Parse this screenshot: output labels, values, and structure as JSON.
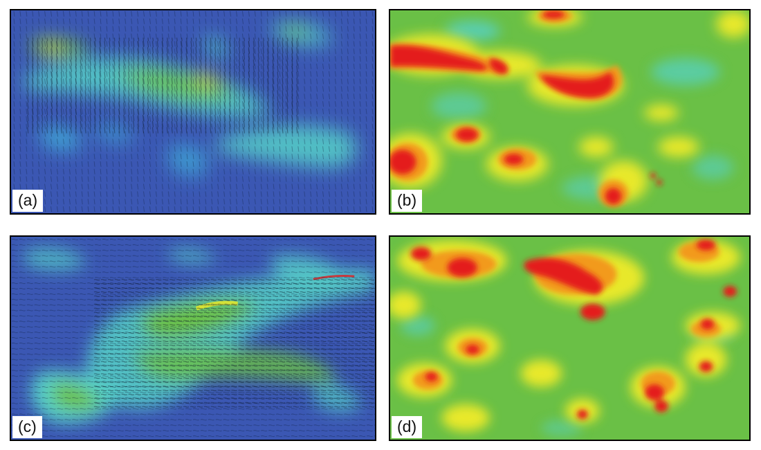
{
  "panels": [
    {
      "id": "a",
      "label": "(a)",
      "kind": "vector-field",
      "base_color": "#3b57b3"
    },
    {
      "id": "b",
      "label": "(b)",
      "kind": "scalar-map",
      "base_color": "#6ac046"
    },
    {
      "id": "c",
      "label": "(c)",
      "kind": "vector-field",
      "base_color": "#3b57b3"
    },
    {
      "id": "d",
      "label": "(d)",
      "kind": "scalar-map",
      "base_color": "#6ac046"
    }
  ],
  "colormap": [
    "#3b57b3",
    "#3fa7d6",
    "#56d1c8",
    "#6ac046",
    "#e8e82a",
    "#f29a1c",
    "#e41c1c"
  ]
}
